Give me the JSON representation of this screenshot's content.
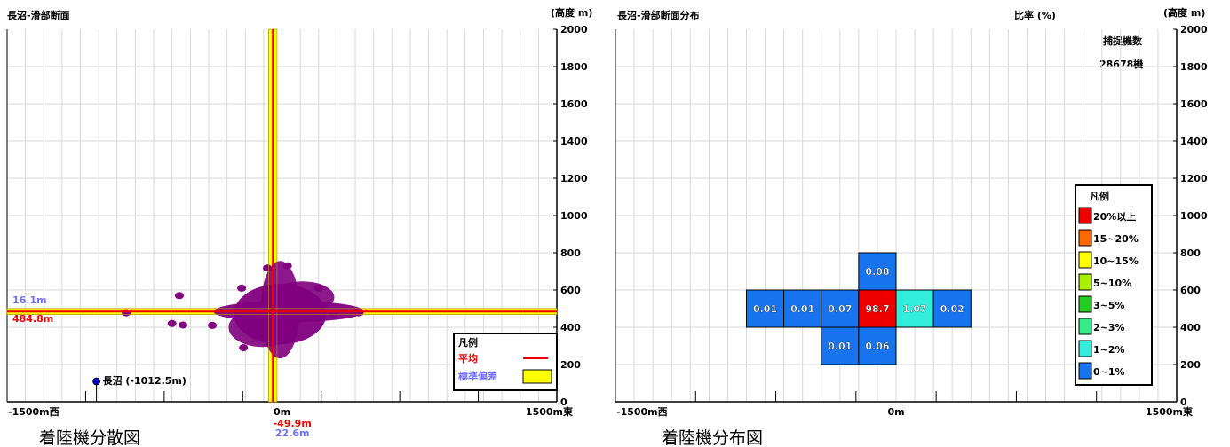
{
  "chart_data": [
    {
      "type": "scatter",
      "title": "長沼-滑部断面",
      "units_label": "(高度 m)",
      "caption": "着陸機分散図",
      "x_ticks": [
        "-1500m西",
        "0m",
        "1500m東"
      ],
      "y_ticks": [
        "0",
        "200",
        "400",
        "600",
        "800",
        "1000",
        "1200",
        "1400",
        "1600",
        "1800",
        "2000"
      ],
      "xlim": [
        -1500,
        1500
      ],
      "ylim": [
        0,
        2000
      ],
      "grid": true,
      "mean": {
        "x": -49.9,
        "y": 484.8,
        "x_label": "-49.9m",
        "y_label": "484.8m",
        "color": "#ee0000"
      },
      "std": {
        "x": 22.6,
        "y": 16.1,
        "x_label": "22.6m",
        "y_label": "16.1m",
        "color": "#7070ff",
        "band_color": "#ffff00"
      },
      "reference_point": {
        "label": "長沼 (-1012.5m)",
        "x": -1012.5,
        "y": 100
      },
      "scatter_color": "#800080",
      "outlier_points": [
        {
          "x": -850,
          "y": 478
        },
        {
          "x": -560,
          "y": 570
        },
        {
          "x": -600,
          "y": 420
        },
        {
          "x": -540,
          "y": 412
        },
        {
          "x": -380,
          "y": 410
        },
        {
          "x": -210,
          "y": 290
        },
        {
          "x": -220,
          "y": 610
        },
        {
          "x": -80,
          "y": 718
        },
        {
          "x": 30,
          "y": 730
        },
        {
          "x": 50,
          "y": 360
        },
        {
          "x": 200,
          "y": 610
        },
        {
          "x": 420,
          "y": 478
        },
        {
          "x": 280,
          "y": 470
        }
      ],
      "legend": {
        "title": "凡例",
        "items": [
          {
            "label": "平均",
            "color": "#ee0000",
            "kind": "line"
          },
          {
            "label": "標準偏差",
            "color": "#7070ff",
            "swatch": "#ffff00",
            "kind": "box"
          }
        ],
        "position": "bottom-right"
      }
    },
    {
      "type": "heatmap",
      "title": "長沼-滑部断面分布",
      "ratio_label": "比率 (%)",
      "units_label": "(高度 m)",
      "caption": "着陸機分布図",
      "count_label": "捕捉機数",
      "count_value": "28678機",
      "x_ticks": [
        "-1500m西",
        "0m",
        "1500m東"
      ],
      "y_ticks": [
        "0",
        "200",
        "400",
        "600",
        "800",
        "1000",
        "1200",
        "1400",
        "1600",
        "1800",
        "2000"
      ],
      "xlim": [
        -1500,
        1500
      ],
      "ylim": [
        0,
        2000
      ],
      "grid": true,
      "cells": [
        {
          "x0": -200,
          "x1": 0,
          "y0": 600,
          "y1": 800,
          "value": "0.08",
          "color": "#1874ee"
        },
        {
          "x0": -800,
          "x1": -600,
          "y0": 400,
          "y1": 600,
          "value": "0.01",
          "color": "#1874ee"
        },
        {
          "x0": -600,
          "x1": -400,
          "y0": 400,
          "y1": 600,
          "value": "0.01",
          "color": "#1874ee"
        },
        {
          "x0": -400,
          "x1": -200,
          "y0": 400,
          "y1": 600,
          "value": "0.07",
          "color": "#1874ee"
        },
        {
          "x0": -200,
          "x1": 0,
          "y0": 400,
          "y1": 600,
          "value": "98.7",
          "color": "#ee0000"
        },
        {
          "x0": 0,
          "x1": 200,
          "y0": 400,
          "y1": 600,
          "value": "1.07",
          "color": "#33eedd"
        },
        {
          "x0": 200,
          "x1": 400,
          "y0": 400,
          "y1": 600,
          "value": "0.02",
          "color": "#1874ee"
        },
        {
          "x0": -400,
          "x1": -200,
          "y0": 200,
          "y1": 400,
          "value": "0.01",
          "color": "#1874ee"
        },
        {
          "x0": -200,
          "x1": 0,
          "y0": 200,
          "y1": 400,
          "value": "0.06",
          "color": "#1874ee"
        }
      ],
      "legend": {
        "title": "凡例",
        "items": [
          {
            "label": "20%以上",
            "color": "#ee0000"
          },
          {
            "label": "15~20%",
            "color": "#ff6a00"
          },
          {
            "label": "10~15%",
            "color": "#ffff00"
          },
          {
            "label": "5~10%",
            "color": "#aaee00"
          },
          {
            "label": "3~5%",
            "color": "#22cc22"
          },
          {
            "label": "2~3%",
            "color": "#33ee88"
          },
          {
            "label": "1~2%",
            "color": "#33eedd"
          },
          {
            "label": "0~1%",
            "color": "#1874ee"
          }
        ],
        "position": "right"
      }
    }
  ]
}
